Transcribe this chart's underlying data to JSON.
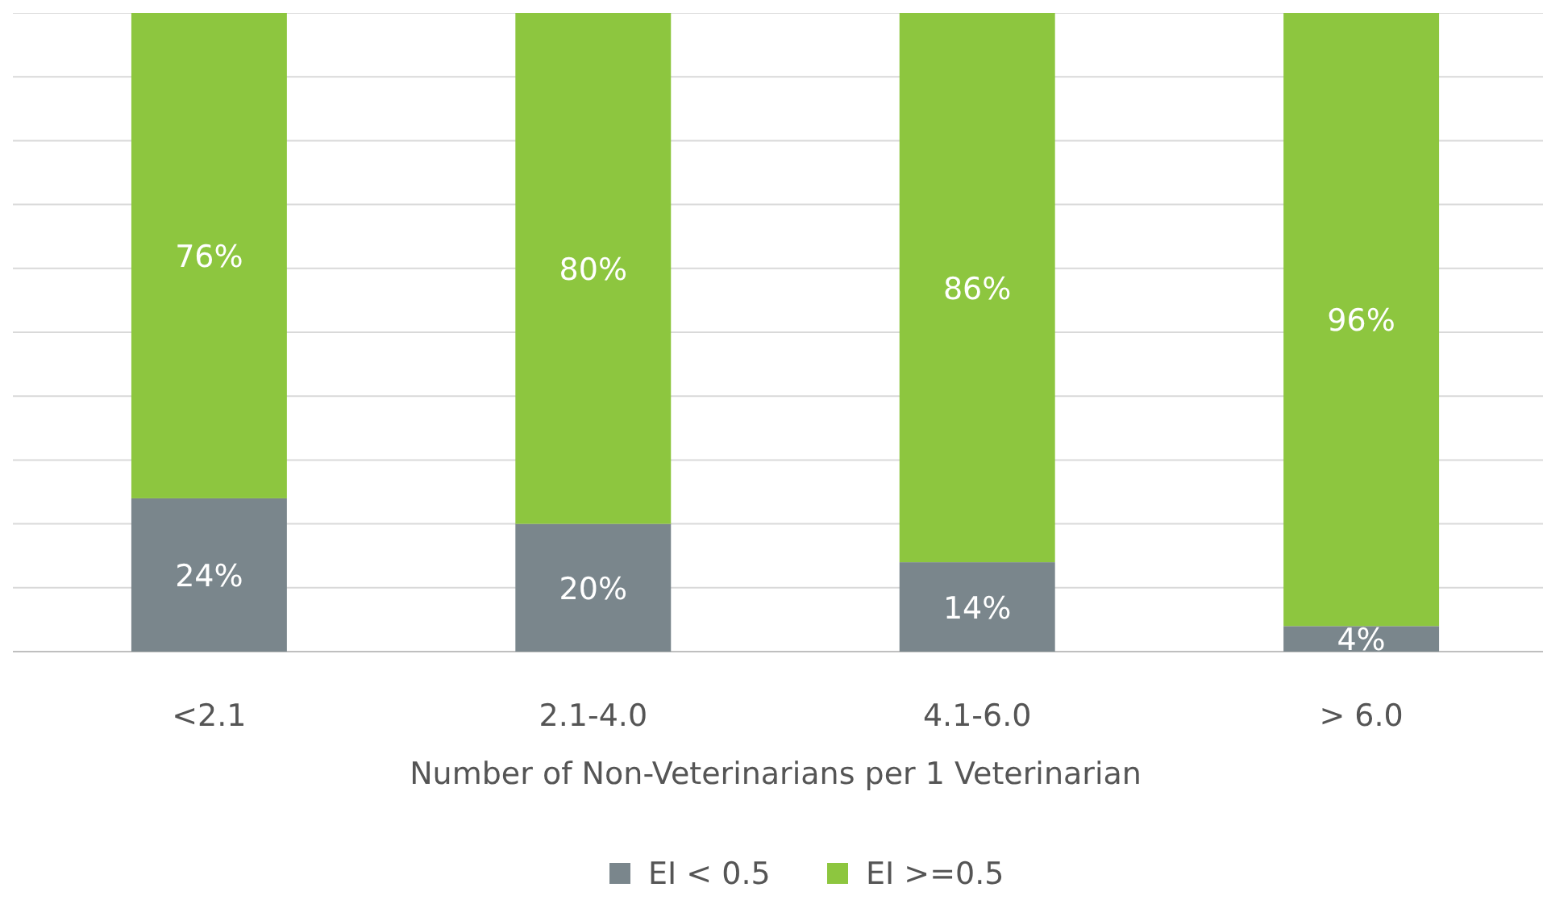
{
  "chart_data": {
    "type": "bar",
    "stacked": true,
    "xlabel": "Number of Non-Veterinarians per 1 Veterinarian",
    "categories": [
      "<2.1",
      "2.1-4.0",
      "4.1-6.0",
      "> 6.0"
    ],
    "series": [
      {
        "name": "EI < 0.5",
        "color": "#7a868c",
        "values": [
          24,
          20,
          14,
          4
        ],
        "value_labels": [
          "24%",
          "20%",
          "14%",
          "4%"
        ]
      },
      {
        "name": "EI >=0.5",
        "color": "#8dc63f",
        "values": [
          76,
          80,
          86,
          96
        ],
        "value_labels": [
          "76%",
          "80%",
          "86%",
          "96%"
        ]
      }
    ],
    "ylim": [
      0,
      100
    ],
    "yticks": [
      {
        "value": 0,
        "label": null
      },
      {
        "value": 10,
        "label": null
      },
      {
        "value": 20,
        "label": null
      },
      {
        "value": 30,
        "label": null
      },
      {
        "value": 40,
        "label": null
      },
      {
        "value": 50,
        "label": null
      },
      {
        "value": 60,
        "label": null
      },
      {
        "value": 70,
        "label": null
      },
      {
        "value": 80,
        "label": null
      },
      {
        "value": 90,
        "label": null
      },
      {
        "value": 100,
        "label": null
      }
    ],
    "tick_labels": "x",
    "grid": "y",
    "legend": "bottom"
  }
}
